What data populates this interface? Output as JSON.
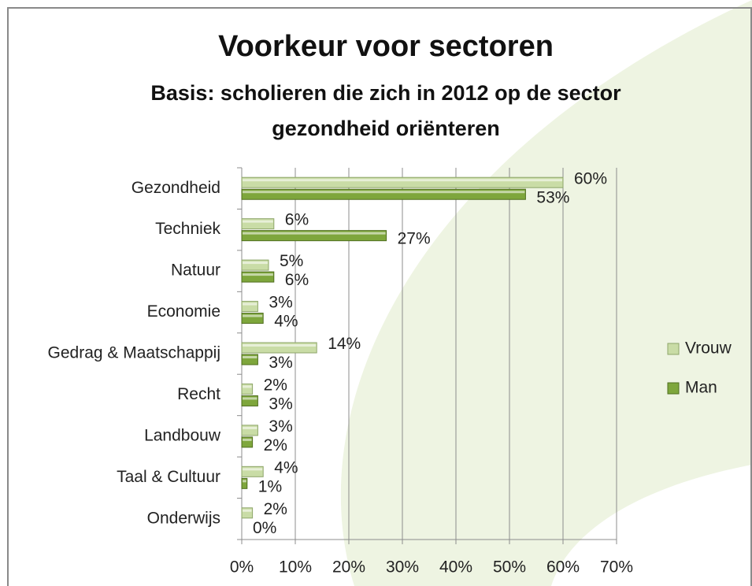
{
  "chart_data": {
    "type": "barh",
    "title": "Voorkeur voor sectoren",
    "subtitle": "Basis: scholieren die zich in 2012 op de sector gezondheid oriënteren",
    "categories": [
      "Gezondheid",
      "Techniek",
      "Natuur",
      "Economie",
      "Gedrag & Maatschappij",
      "Recht",
      "Landbouw",
      "Taal & Cultuur",
      "Onderwijs"
    ],
    "series": [
      {
        "name": "Vrouw",
        "color": "#c9dca6",
        "values": [
          60,
          6,
          5,
          3,
          14,
          2,
          3,
          4,
          2
        ],
        "value_labels": [
          "60%",
          "6%",
          "5%",
          "3%",
          "14%",
          "2%",
          "3%",
          "4%",
          "2%"
        ]
      },
      {
        "name": "Man",
        "color": "#7ea63c",
        "values": [
          53,
          27,
          6,
          4,
          3,
          3,
          2,
          1,
          0
        ],
        "value_labels": [
          "53%",
          "27%",
          "6%",
          "4%",
          "3%",
          "3%",
          "2%",
          "1%",
          "0%"
        ]
      }
    ],
    "xlim": [
      0,
      70
    ],
    "xticks": [
      {
        "value": 0,
        "label": "0%"
      },
      {
        "value": 10,
        "label": "10%"
      },
      {
        "value": 20,
        "label": "20%"
      },
      {
        "value": 30,
        "label": "30%"
      },
      {
        "value": 40,
        "label": "40%"
      },
      {
        "value": 50,
        "label": "50%"
      },
      {
        "value": 60,
        "label": "60%"
      },
      {
        "value": 70,
        "label": "70%"
      }
    ],
    "grid": true,
    "legend": "right"
  }
}
